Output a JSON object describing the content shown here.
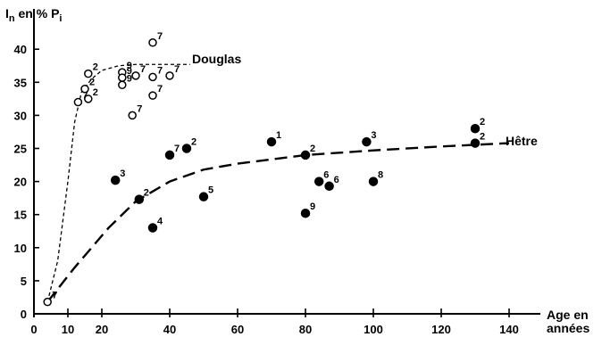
{
  "chart_data": {
    "type": "scatter",
    "ylabel_main": "I",
    "ylabel_sub": "n",
    "ylabel_rest": " en % P",
    "ylabel_sub2": "i",
    "xlabel_line1": "Age en",
    "xlabel_line2": "années",
    "xlim": [
      0,
      150
    ],
    "ylim": [
      0,
      45
    ],
    "x_ticks": [
      "0",
      "10",
      "20",
      "40",
      "60",
      "80",
      "100",
      "120",
      "140"
    ],
    "x_tick_values": [
      0,
      10,
      20,
      40,
      60,
      80,
      100,
      120,
      140
    ],
    "y_ticks": [
      "0",
      "5",
      "10",
      "15",
      "20",
      "25",
      "30",
      "35",
      "40"
    ],
    "y_tick_values": [
      0,
      5,
      10,
      15,
      20,
      25,
      30,
      35,
      40
    ],
    "series": [
      {
        "name": "Douglas",
        "marker": "open-circle",
        "points": [
          {
            "x": 4,
            "y": 1.8,
            "label": "7"
          },
          {
            "x": 13,
            "y": 32,
            "label": "7"
          },
          {
            "x": 15,
            "y": 34,
            "label": "2"
          },
          {
            "x": 16,
            "y": 36.3,
            "label": "2"
          },
          {
            "x": 16,
            "y": 32.5,
            "label": "2"
          },
          {
            "x": 26,
            "y": 36.5,
            "label": "9"
          },
          {
            "x": 26,
            "y": 35.7,
            "label": "9"
          },
          {
            "x": 26,
            "y": 34.6,
            "label": "9"
          },
          {
            "x": 29,
            "y": 30,
            "label": "7"
          },
          {
            "x": 30,
            "y": 36,
            "label": "7"
          },
          {
            "x": 35,
            "y": 41,
            "label": "7"
          },
          {
            "x": 35,
            "y": 35.8,
            "label": "7"
          },
          {
            "x": 35,
            "y": 33,
            "label": "7"
          },
          {
            "x": 40,
            "y": 36,
            "label": "7"
          }
        ],
        "curve": [
          [
            4,
            1.8
          ],
          [
            7,
            8
          ],
          [
            10,
            20
          ],
          [
            12,
            29
          ],
          [
            14,
            33.5
          ],
          [
            17,
            35.5
          ],
          [
            20,
            36.8
          ],
          [
            25,
            37.5
          ],
          [
            30,
            37.7
          ],
          [
            35,
            37.7
          ],
          [
            40,
            37.7
          ],
          [
            46,
            37.7
          ]
        ]
      },
      {
        "name": "Hêtre",
        "marker": "filled-circle",
        "points": [
          {
            "x": 24,
            "y": 20.2,
            "label": "3"
          },
          {
            "x": 31,
            "y": 17.3,
            "label": "2"
          },
          {
            "x": 35,
            "y": 13,
            "label": "4"
          },
          {
            "x": 40,
            "y": 24,
            "label": "7"
          },
          {
            "x": 45,
            "y": 25,
            "label": "2"
          },
          {
            "x": 50,
            "y": 17.7,
            "label": "5"
          },
          {
            "x": 70,
            "y": 26,
            "label": "1"
          },
          {
            "x": 80,
            "y": 24,
            "label": "2"
          },
          {
            "x": 80,
            "y": 15.2,
            "label": "9"
          },
          {
            "x": 84,
            "y": 20,
            "label": "6"
          },
          {
            "x": 87,
            "y": 19.3,
            "label": "6"
          },
          {
            "x": 98,
            "y": 26,
            "label": "3"
          },
          {
            "x": 100,
            "y": 20,
            "label": "8"
          },
          {
            "x": 130,
            "y": 28,
            "label": "2"
          },
          {
            "x": 130,
            "y": 25.8,
            "label": "2"
          }
        ],
        "curve": [
          [
            4,
            1.8
          ],
          [
            12,
            7
          ],
          [
            22,
            13
          ],
          [
            30,
            17
          ],
          [
            40,
            20
          ],
          [
            50,
            21.8
          ],
          [
            60,
            22.7
          ],
          [
            80,
            24
          ],
          [
            100,
            24.7
          ],
          [
            120,
            25.3
          ],
          [
            140,
            25.8
          ]
        ]
      }
    ]
  }
}
